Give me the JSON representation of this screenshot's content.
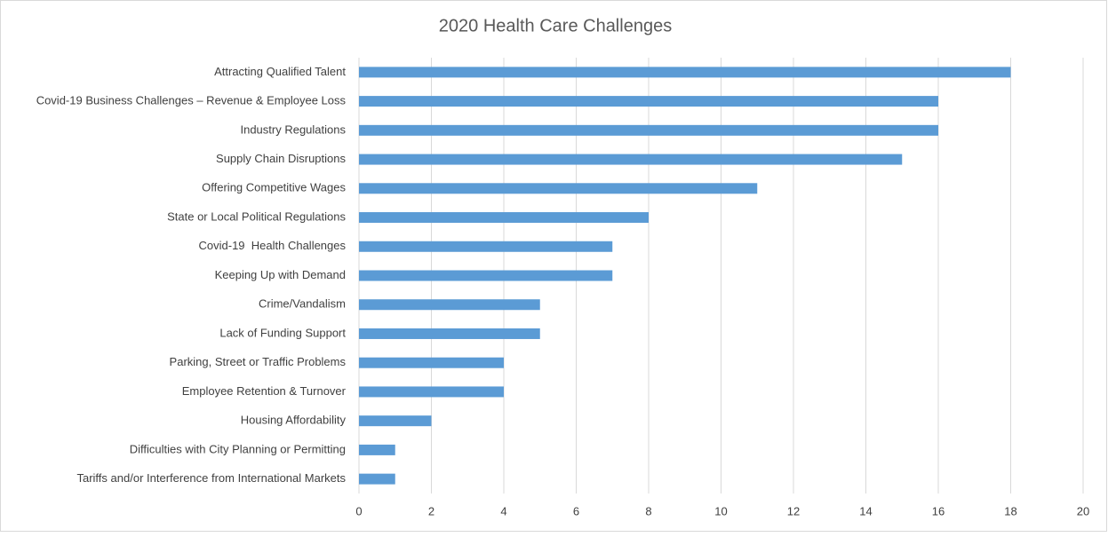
{
  "chart_data": {
    "type": "bar",
    "orientation": "horizontal",
    "title": "2020 Health Care Challenges",
    "categories": [
      "Attracting Qualified Talent",
      "Covid-19 Business Challenges – Revenue & Employee Loss",
      "Industry Regulations",
      "Supply Chain Disruptions",
      "Offering Competitive Wages",
      "State or Local Political Regulations",
      "Covid-19  Health Challenges",
      "Keeping Up with Demand",
      "Crime/Vandalism",
      "Lack of Funding Support",
      "Parking, Street or Traffic Problems",
      "Employee Retention & Turnover",
      "Housing Affordability",
      "Difficulties with City Planning or Permitting",
      "Tariffs and/or Interference from International Markets"
    ],
    "values": [
      18,
      16,
      16,
      15,
      11,
      8,
      7,
      7,
      5,
      5,
      4,
      4,
      2,
      1,
      1
    ],
    "color": "#5b9bd5",
    "xlim": [
      0,
      20
    ],
    "xticks": [
      0,
      2,
      4,
      6,
      8,
      10,
      12,
      14,
      16,
      18,
      20
    ],
    "grid": true
  }
}
